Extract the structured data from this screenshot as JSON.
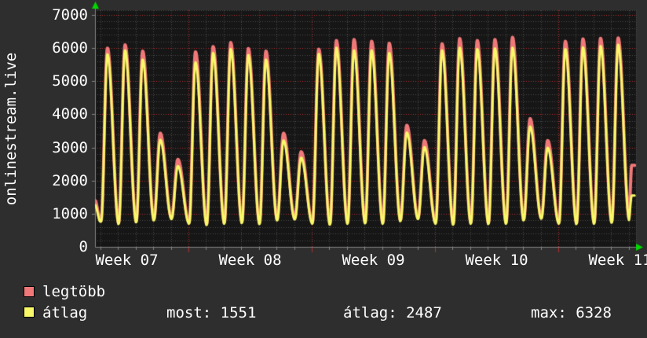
{
  "colors": {
    "page_background": "#2e2e2e",
    "plot_background": "#161616",
    "grid_major": "#b03030",
    "grid_minor": "#4a4a4a",
    "axis": "#848484",
    "arrow_green": "#00d800",
    "text": "#ffffff"
  },
  "ylabel": "onlinestream.live",
  "legend": {
    "series1": {
      "label": "legtöbb",
      "color": "#f07878"
    },
    "series2": {
      "label": "átlag",
      "color": "#f8f868"
    },
    "stats": {
      "most_text": "most: 1551",
      "avg_text": "átlag: 2487",
      "max_text": "max: 6328"
    }
  },
  "chart_data": {
    "type": "line",
    "title": "onlinestream.live",
    "xlabel": "",
    "ylabel": "onlinestream.live",
    "ylim": [
      0,
      7143
    ],
    "y_ticks": [
      0,
      1000,
      2000,
      3000,
      4000,
      5000,
      6000,
      7000
    ],
    "y_minor_step": 200,
    "x_tick_labels": [
      "Week 07",
      "Week 08",
      "Week 09",
      "Week 10",
      "Week 11"
    ],
    "x_minor_step_days": 1,
    "x_major_step_days": 7,
    "visible_days": 30.35,
    "grid": {
      "major": "dotted red",
      "minor": "dotted gray",
      "legend_position": "bottom-left"
    },
    "series": [
      {
        "name": "legtöbb",
        "color": "#f07878",
        "daily_peaks": [
          6000,
          6100,
          5910,
          3430,
          2640,
          5890,
          6050,
          6170,
          5990,
          5910,
          3430,
          2870,
          5970,
          6230,
          6260,
          6210,
          6150,
          3670,
          3210,
          6130,
          6290,
          6230,
          6260,
          6328,
          3870,
          3210,
          6210,
          6280,
          6300,
          6310
        ],
        "left_edge_value": 1400,
        "last_value": 2460
      },
      {
        "name": "átlag",
        "color": "#f8f868",
        "daily_peaks": [
          5810,
          5930,
          5650,
          3230,
          2440,
          5570,
          5850,
          5970,
          5790,
          5650,
          3210,
          2690,
          5825,
          6010,
          5930,
          5930,
          5850,
          3450,
          3010,
          5930,
          6010,
          5970,
          5990,
          6010,
          3630,
          2990,
          5970,
          6020,
          6060,
          6100
        ],
        "left_edge_value": 1260,
        "last_value": 1551
      }
    ],
    "troughs": [
      760,
      690,
      740,
      800,
      840,
      700,
      660,
      700,
      720,
      690,
      800,
      830,
      700,
      670,
      700,
      710,
      700,
      780,
      840,
      700,
      670,
      700,
      690,
      700,
      800,
      850,
      700,
      690,
      700,
      730,
      790
    ],
    "summary": {
      "most": 1551,
      "atlag": 2487,
      "max": 6328
    }
  }
}
